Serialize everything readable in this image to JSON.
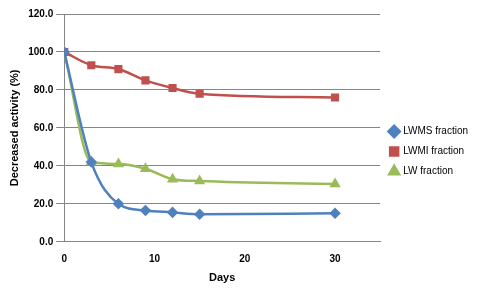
{
  "chart_data": {
    "type": "line",
    "x_label": "Days",
    "y_label": "Decreased activity (%)",
    "x": [
      0,
      3,
      6,
      9,
      12,
      15,
      30
    ],
    "xlim": [
      0,
      35
    ],
    "xticks": [
      0,
      10,
      20,
      30
    ],
    "ylim": [
      0,
      120
    ],
    "yticks": [
      {
        "value": 0,
        "label": "0.0"
      },
      {
        "value": 20,
        "label": "20.0"
      },
      {
        "value": 40,
        "label": "40.0"
      },
      {
        "value": 60,
        "label": "60.0"
      },
      {
        "value": 80,
        "label": "80.0"
      },
      {
        "value": 100,
        "label": "100.0"
      },
      {
        "value": 120,
        "label": "120.0"
      }
    ],
    "grid": true,
    "legend": "right",
    "series": [
      {
        "name": "LWMS fraction",
        "color": "#4f81bd",
        "marker": "diamond",
        "line_style": "solid",
        "values": [
          100,
          42,
          20,
          16.5,
          15.5,
          14.5,
          15
        ]
      },
      {
        "name": "LWMI fraction",
        "color": "#c0504d",
        "marker": "square",
        "line_style": "solid",
        "values": [
          100,
          93,
          91,
          85,
          81,
          78,
          76
        ]
      },
      {
        "name": "LW fraction",
        "color": "#9bbb59",
        "marker": "triangle",
        "line_style": "solid",
        "values": [
          100,
          42,
          41,
          38.5,
          33,
          32,
          30.5
        ]
      }
    ]
  }
}
